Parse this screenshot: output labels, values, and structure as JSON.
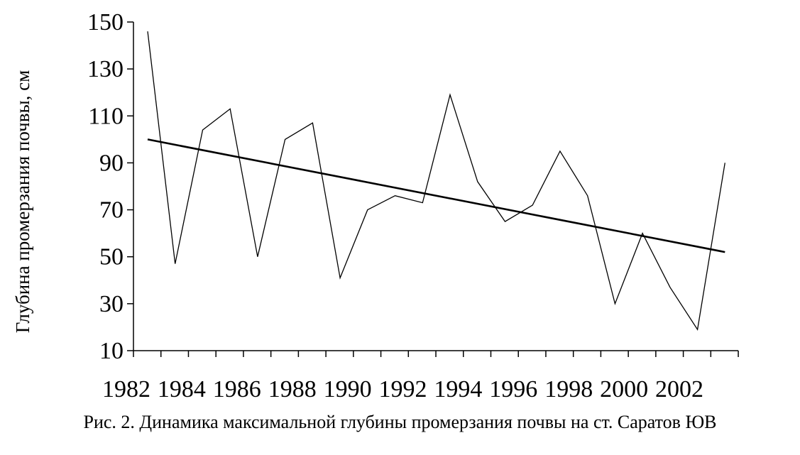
{
  "chart_data": {
    "type": "line",
    "ylabel": "Глубина промерзания почвы, см",
    "caption": "Рис. 2. Динамика максимальной глубины промерзания почвы на ст. Саратов ЮВ",
    "ylim": [
      10,
      150
    ],
    "y_ticks": [
      10,
      30,
      50,
      70,
      90,
      110,
      130,
      150
    ],
    "x_range": [
      1982,
      2004
    ],
    "x_tick_labels": [
      "1982",
      "1984",
      "1986",
      "1988",
      "1990",
      "1992",
      "1994",
      "1996",
      "1998",
      "2000",
      "2002"
    ],
    "grid": false,
    "series": [
      {
        "style": "thin",
        "x": [
          1983,
          1984,
          1985,
          1986,
          1987,
          1988,
          1989,
          1990,
          1991,
          1992,
          1993,
          1994,
          1995,
          1996,
          1997,
          1998,
          1999,
          2000,
          2001,
          2002,
          2003,
          2004
        ],
        "values": [
          146,
          47,
          104,
          113,
          50,
          100,
          107,
          41,
          70,
          76,
          73,
          119,
          82,
          65,
          72,
          95,
          76,
          30,
          60,
          37,
          19,
          90
        ]
      },
      {
        "style": "trend",
        "x": [
          1983,
          2004
        ],
        "values": [
          100,
          52
        ]
      }
    ]
  }
}
